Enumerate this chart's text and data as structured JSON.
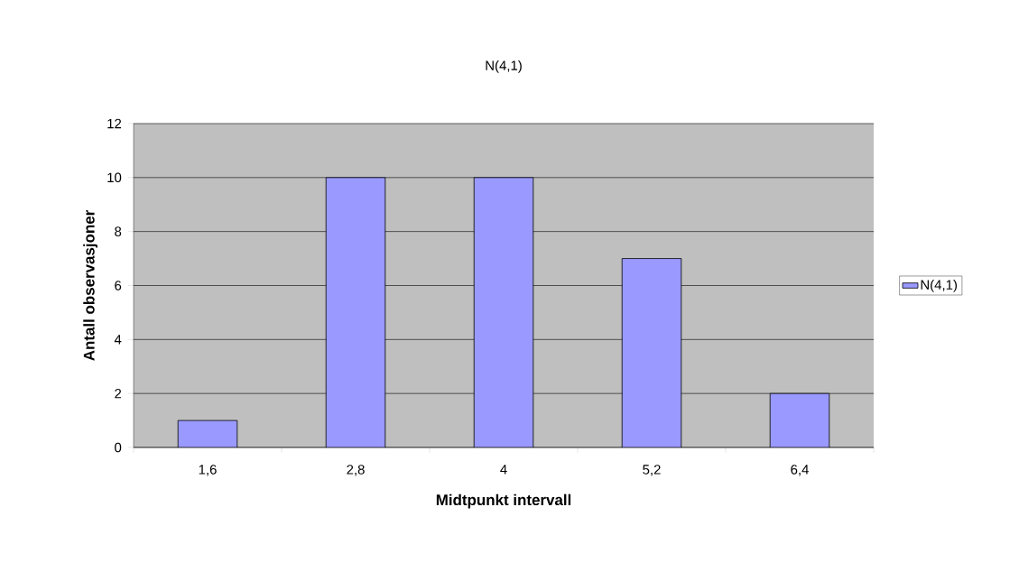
{
  "chart_data": {
    "type": "bar",
    "title": "N(4,1)",
    "xlabel": "Midtpunkt intervall",
    "ylabel": "Antall observasjoner",
    "categories": [
      "1,6",
      "2,8",
      "4",
      "5,2",
      "6,4"
    ],
    "series": [
      {
        "name": "N(4,1)",
        "color": "#9999ff",
        "values": [
          1,
          10,
          10,
          7,
          2
        ]
      }
    ],
    "ylim": [
      0,
      12
    ],
    "yticks": [
      0,
      2,
      4,
      6,
      8,
      10,
      12
    ],
    "grid": "y",
    "legend": "right"
  }
}
